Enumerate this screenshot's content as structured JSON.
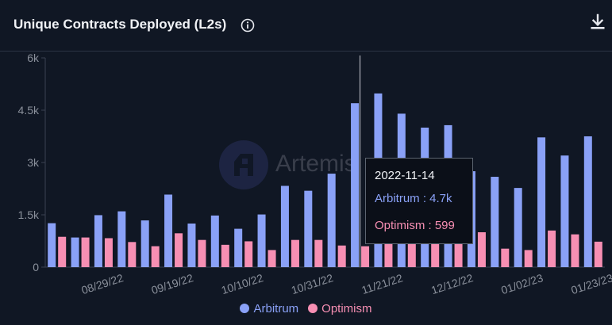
{
  "header": {
    "title": "Unique Contracts Deployed (L2s)",
    "info_icon": "info-circle-icon",
    "download_icon": "download-icon"
  },
  "watermark": {
    "text": "Artemis"
  },
  "tooltip": {
    "date": "2022-11-14",
    "rows": [
      {
        "label": "Arbitrum : 4.7k",
        "color": "#8aa1f7"
      },
      {
        "label": "Optimism : 599",
        "color": "#f78fb3"
      }
    ]
  },
  "legend": [
    {
      "label": "Arbitrum",
      "color": "#8aa1f7"
    },
    {
      "label": "Optimism",
      "color": "#f78fb3"
    }
  ],
  "chart_data": {
    "type": "bar",
    "title": "Unique Contracts Deployed (L2s)",
    "categories": [
      "2022-08-15",
      "2022-08-22",
      "2022-08-29",
      "2022-09-05",
      "2022-09-12",
      "2022-09-19",
      "2022-09-26",
      "2022-10-03",
      "2022-10-10",
      "2022-10-17",
      "2022-10-24",
      "2022-10-31",
      "2022-11-07",
      "2022-11-14",
      "2022-11-21",
      "2022-11-28",
      "2022-12-05",
      "2022-12-12",
      "2022-12-19",
      "2022-12-26",
      "2023-01-02",
      "2023-01-09",
      "2023-01-16",
      "2023-01-23"
    ],
    "x_tick_labels": [
      "08/29/22",
      "09/19/22",
      "10/10/22",
      "10/31/22",
      "11/21/22",
      "12/12/22",
      "01/02/23",
      "01/23/23"
    ],
    "x_tick_categories": [
      2,
      5,
      8,
      11,
      14,
      17,
      20,
      23
    ],
    "y_tick_labels": [
      "0",
      "1.5k",
      "3k",
      "4.5k",
      "6k"
    ],
    "y_tick_values": [
      0,
      1500,
      3000,
      4500,
      6000
    ],
    "ylim": [
      0,
      6000
    ],
    "series": [
      {
        "name": "Arbitrum",
        "color": "#8aa1f7",
        "values": [
          1260,
          850,
          1490,
          1600,
          1340,
          2080,
          1250,
          1480,
          1100,
          1510,
          2330,
          2190,
          2680,
          4700,
          4980,
          4400,
          4000,
          4070,
          2750,
          2590,
          2270,
          3720,
          3200,
          3750
        ]
      },
      {
        "name": "Optimism",
        "color": "#f78fb3",
        "values": [
          870,
          850,
          830,
          720,
          600,
          970,
          780,
          640,
          740,
          490,
          780,
          780,
          620,
          599,
          800,
          790,
          910,
          800,
          1000,
          530,
          490,
          1050,
          940,
          730
        ]
      }
    ],
    "highlight_index": 13,
    "grid": false,
    "legend_position": "bottom"
  }
}
